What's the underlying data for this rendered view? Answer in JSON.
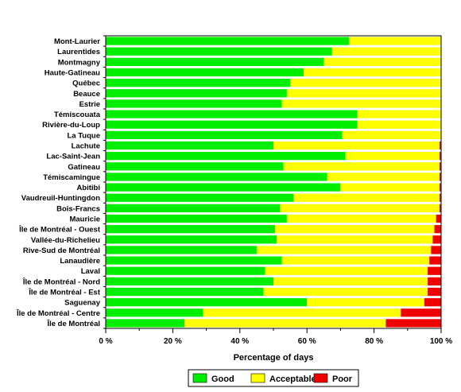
{
  "chart_data": {
    "type": "bar",
    "orientation": "horizontal",
    "stacked": true,
    "categories": [
      "Mont-Laurier",
      "Laurentides",
      "Montmagny",
      "Haute-Gatineau",
      "Québec",
      "Beauce",
      "Estrie",
      "Témiscouata",
      "Rivière-du-Loup",
      "La Tuque",
      "Lachute",
      "Lac-Saint-Jean",
      "Gatineau",
      "Témiscamingue",
      "Abitibi",
      "Vaudreuil-Huntingdon",
      "Bois-Francs",
      "Mauricie",
      "Île de Montréal - Ouest",
      "Vallée-du-Richelieu",
      "Rive-Sud de Montréal",
      "Lanaudière",
      "Laval",
      "Île de Montréal - Nord",
      "Île de Montréal - Est",
      "Saguenay",
      "Île de Montréal - Centre",
      "Île de Montréal"
    ],
    "series": [
      {
        "name": "Good",
        "color": "#00ee00",
        "values": [
          72.5,
          67.5,
          65,
          59,
          55,
          54,
          52.5,
          75,
          75,
          70.5,
          50,
          71.5,
          53,
          66,
          70,
          56,
          52,
          54,
          50.5,
          51,
          45,
          52.5,
          47.5,
          50,
          47,
          60,
          29,
          23.5
        ]
      },
      {
        "name": "Acceptable",
        "color": "#ffff00",
        "values": [
          27.5,
          32.5,
          35,
          41,
          45,
          46,
          47.5,
          25,
          25,
          29.5,
          49.5,
          28,
          46.5,
          33.5,
          29.5,
          43.5,
          47.5,
          44.5,
          47.5,
          46.5,
          52,
          44,
          48.5,
          46,
          49,
          35,
          59,
          60
        ]
      },
      {
        "name": "Poor",
        "color": "#ee0000",
        "values": [
          0,
          0,
          0,
          0,
          0,
          0,
          0,
          0,
          0,
          0,
          0.5,
          0.5,
          0.5,
          0.5,
          0.5,
          0.5,
          0.5,
          1.5,
          2,
          2.5,
          3,
          3.5,
          4,
          4,
          4,
          5,
          12,
          16.5
        ]
      }
    ],
    "xlabel": "Percentage of days",
    "ylabel": "",
    "xlim": [
      0,
      100
    ],
    "xticks": [
      0,
      20,
      40,
      60,
      80,
      100
    ],
    "xtick_labels": [
      "0 %",
      "20 %",
      "40 %",
      "60 %",
      "80 %",
      "100 %"
    ],
    "grid": false,
    "legend_position": "bottom"
  }
}
